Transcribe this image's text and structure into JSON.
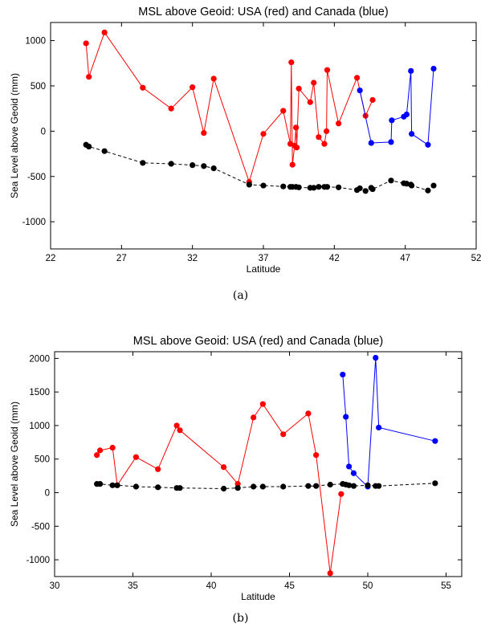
{
  "captions": [
    "(a)",
    "(b)"
  ],
  "chart_data": [
    {
      "type": "line",
      "title": "MSL above Geoid: USA (red) and Canada (blue)",
      "xlabel": "Latitude",
      "ylabel": "Sea Level above Geoid (mm)",
      "xlim": [
        22,
        52
      ],
      "ylim": [
        -1300,
        1200
      ],
      "xticks": [
        22,
        27,
        32,
        37,
        42,
        47,
        52
      ],
      "yticks": [
        -1000,
        -500,
        0,
        500,
        1000
      ],
      "grid": false,
      "series": [
        {
          "name": "USA",
          "color": "#ff0000",
          "style": "solid",
          "points": [
            [
              24.5,
              970
            ],
            [
              24.7,
              600
            ],
            [
              25.8,
              1090
            ],
            [
              28.5,
              480
            ],
            [
              30.5,
              250
            ],
            [
              32.0,
              485
            ],
            [
              32.8,
              -20
            ],
            [
              33.5,
              580
            ],
            [
              36.0,
              -560
            ],
            [
              37.0,
              -30
            ],
            [
              38.4,
              225
            ],
            [
              38.9,
              -140
            ],
            [
              38.97,
              760
            ],
            [
              39.05,
              -370
            ],
            [
              39.2,
              -160
            ],
            [
              39.3,
              40
            ],
            [
              39.35,
              -180
            ],
            [
              39.5,
              470
            ],
            [
              40.3,
              320
            ],
            [
              40.55,
              535
            ],
            [
              40.9,
              -65
            ],
            [
              41.3,
              -140
            ],
            [
              41.45,
              0
            ],
            [
              41.5,
              675
            ],
            [
              42.3,
              85
            ],
            [
              43.6,
              590
            ],
            [
              44.2,
              170
            ],
            [
              44.7,
              345
            ]
          ]
        },
        {
          "name": "Canada",
          "color": "#0000ff",
          "style": "solid",
          "points": [
            [
              43.8,
              450
            ],
            [
              44.6,
              -130
            ],
            [
              46.0,
              -120
            ],
            [
              46.05,
              120
            ],
            [
              46.9,
              160
            ],
            [
              47.1,
              185
            ],
            [
              47.4,
              665
            ],
            [
              47.45,
              -30
            ],
            [
              48.6,
              -150
            ],
            [
              49.0,
              690
            ]
          ]
        },
        {
          "name": "",
          "color": "#000000",
          "style": "dashed",
          "points": [
            [
              24.5,
              -150
            ],
            [
              24.7,
              -170
            ],
            [
              25.8,
              -220
            ],
            [
              28.5,
              -350
            ],
            [
              30.5,
              -360
            ],
            [
              32.0,
              -375
            ],
            [
              32.8,
              -385
            ],
            [
              33.5,
              -410
            ],
            [
              36.0,
              -590
            ],
            [
              37.0,
              -600
            ],
            [
              38.4,
              -610
            ],
            [
              38.9,
              -615
            ],
            [
              39.05,
              -615
            ],
            [
              39.3,
              -615
            ],
            [
              39.5,
              -620
            ],
            [
              40.3,
              -625
            ],
            [
              40.55,
              -625
            ],
            [
              40.9,
              -615
            ],
            [
              41.3,
              -615
            ],
            [
              41.5,
              -615
            ],
            [
              42.3,
              -620
            ],
            [
              43.6,
              -650
            ],
            [
              43.8,
              -630
            ],
            [
              44.2,
              -660
            ],
            [
              44.6,
              -625
            ],
            [
              44.7,
              -640
            ],
            [
              46.0,
              -545
            ],
            [
              46.9,
              -575
            ],
            [
              47.1,
              -580
            ],
            [
              47.4,
              -590
            ],
            [
              47.45,
              -600
            ],
            [
              48.6,
              -655
            ],
            [
              49.0,
              -600
            ]
          ]
        }
      ]
    },
    {
      "type": "line",
      "title": "MSL above Geoid: USA (red) and Canada (blue)",
      "xlabel": "Latitude",
      "ylabel": "Sea Level above Geoid (mm)",
      "xlim": [
        30,
        56
      ],
      "ylim": [
        -1250,
        2100
      ],
      "xticks": [
        30,
        35,
        40,
        45,
        50,
        55
      ],
      "yticks": [
        -1000,
        -500,
        0,
        500,
        1000,
        1500,
        2000
      ],
      "grid": false,
      "series": [
        {
          "name": "USA",
          "color": "#ff0000",
          "style": "solid",
          "points": [
            [
              32.7,
              560
            ],
            [
              32.9,
              630
            ],
            [
              33.7,
              670
            ],
            [
              34.0,
              110
            ],
            [
              35.2,
              530
            ],
            [
              36.6,
              350
            ],
            [
              37.8,
              1000
            ],
            [
              38.0,
              930
            ],
            [
              40.8,
              380
            ],
            [
              41.7,
              130
            ],
            [
              42.7,
              1120
            ],
            [
              43.3,
              1320
            ],
            [
              44.6,
              870
            ],
            [
              46.2,
              1180
            ],
            [
              46.7,
              560
            ],
            [
              47.6,
              -1200
            ],
            [
              48.3,
              -20
            ]
          ]
        },
        {
          "name": "Canada",
          "color": "#0000ff",
          "style": "solid",
          "points": [
            [
              48.4,
              1760
            ],
            [
              48.6,
              1130
            ],
            [
              48.8,
              390
            ],
            [
              49.1,
              290
            ],
            [
              50.0,
              90
            ],
            [
              50.5,
              2010
            ],
            [
              50.7,
              970
            ],
            [
              54.3,
              770
            ]
          ]
        },
        {
          "name": "",
          "color": "#000000",
          "style": "dashed",
          "points": [
            [
              32.7,
              130
            ],
            [
              32.9,
              130
            ],
            [
              33.7,
              110
            ],
            [
              34.0,
              110
            ],
            [
              35.2,
              90
            ],
            [
              36.6,
              80
            ],
            [
              37.8,
              70
            ],
            [
              38.0,
              70
            ],
            [
              40.8,
              60
            ],
            [
              41.7,
              70
            ],
            [
              42.7,
              90
            ],
            [
              43.3,
              90
            ],
            [
              44.6,
              90
            ],
            [
              46.2,
              100
            ],
            [
              46.7,
              100
            ],
            [
              47.6,
              120
            ],
            [
              48.4,
              130
            ],
            [
              48.6,
              120
            ],
            [
              48.8,
              110
            ],
            [
              49.1,
              100
            ],
            [
              50.0,
              110
            ],
            [
              50.5,
              100
            ],
            [
              50.7,
              100
            ],
            [
              54.3,
              140
            ]
          ]
        }
      ]
    }
  ]
}
